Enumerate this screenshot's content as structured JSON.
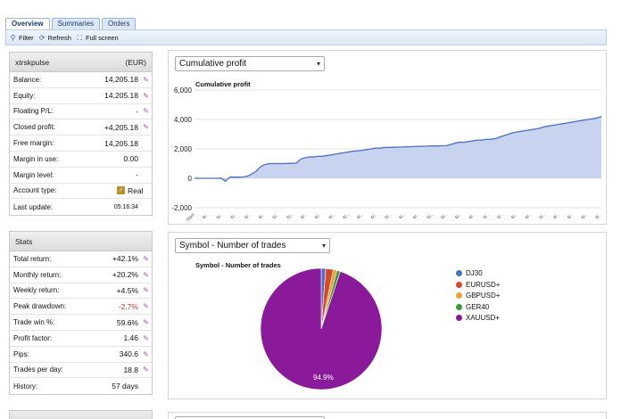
{
  "tabs": [
    "Overview",
    "Summaries",
    "Orders"
  ],
  "toolbar": {
    "filter": "Filter",
    "refresh": "Refresh",
    "fullscreen": "Full screen"
  },
  "account": {
    "name": "xtrskpulse",
    "currency": "(EUR)",
    "rows": [
      {
        "label": "Balance:",
        "value": "14,205.18",
        "editable": true
      },
      {
        "label": "Equity:",
        "value": "14,205.18",
        "editable": true
      },
      {
        "label": "Floating P/L:",
        "value": "-",
        "editable": true
      },
      {
        "label": "Closed profit:",
        "value": "+4,205.18",
        "editable": true
      },
      {
        "label": "Free margin:",
        "value": "14,205.18",
        "editable": false
      },
      {
        "label": "Margin in use:",
        "value": "0.00",
        "editable": false
      },
      {
        "label": "Margin level:",
        "value": "-",
        "editable": false
      },
      {
        "label": "Account type:",
        "value": "Real",
        "editable": false
      },
      {
        "label": "Last update:",
        "value": "05:16:34",
        "editable": false
      }
    ]
  },
  "stats": {
    "title": "Stats",
    "rows": [
      {
        "label": "Total return:",
        "value": "+42.1%",
        "editable": true,
        "color": ""
      },
      {
        "label": "Monthly return:",
        "value": "+20.2%",
        "editable": true,
        "color": ""
      },
      {
        "label": "Weekly return:",
        "value": "+4.5%",
        "editable": true,
        "color": ""
      },
      {
        "label": "Peak drawdown:",
        "value": "-2.7%",
        "editable": true,
        "color": "red"
      },
      {
        "label": "Trade win %:",
        "value": "59.6%",
        "editable": true,
        "color": ""
      },
      {
        "label": "Profit factor:",
        "value": "1.46",
        "editable": true,
        "color": ""
      },
      {
        "label": "Pips:",
        "value": "340.6",
        "editable": true,
        "color": ""
      },
      {
        "label": "Trades per day:",
        "value": "18.8",
        "editable": true,
        "color": ""
      },
      {
        "label": "History:",
        "value": "57 days",
        "editable": false,
        "color": ""
      }
    ]
  },
  "charts": {
    "cumulative_select": "Cumulative profit",
    "symbol_select": "Symbol - Number of trades"
  },
  "chart_data": [
    {
      "type": "area",
      "title": "Cumulative profit",
      "ylim": [
        -2000,
        6000
      ],
      "yticks": [
        "6,000",
        "4,000",
        "2,000",
        "0",
        "-2,000"
      ],
      "first_x_label": "Start",
      "x": [
        0,
        1,
        2,
        3,
        4,
        5,
        6,
        7,
        8,
        9,
        10,
        11,
        12,
        13,
        14,
        15,
        16,
        17,
        18,
        19,
        20,
        21,
        22,
        23,
        24,
        25,
        26,
        27,
        28,
        29,
        30,
        31,
        32,
        33,
        34,
        35,
        36,
        37,
        38,
        39,
        40,
        41,
        42,
        43,
        44,
        45,
        46,
        47,
        48,
        49,
        50,
        51,
        52,
        53,
        54,
        55,
        56,
        57,
        58,
        59,
        60,
        61,
        62,
        63,
        64,
        65,
        66,
        67,
        68,
        69,
        70,
        71,
        72,
        73,
        74,
        75,
        76,
        77,
        78,
        79,
        80,
        81,
        82,
        83,
        84,
        85,
        86,
        87,
        88,
        89,
        90,
        91,
        92
      ],
      "values": [
        0,
        0,
        0,
        0,
        0,
        0,
        10,
        -200,
        80,
        80,
        80,
        90,
        150,
        300,
        500,
        800,
        950,
        1000,
        1000,
        1000,
        1000,
        1010,
        1020,
        1030,
        1300,
        1400,
        1450,
        1450,
        1500,
        1500,
        1550,
        1600,
        1650,
        1700,
        1750,
        1800,
        1850,
        1870,
        1900,
        1950,
        2000,
        2050,
        2050,
        2100,
        2100,
        2110,
        2120,
        2130,
        2140,
        2150,
        2160,
        2170,
        2180,
        2190,
        2200,
        2200,
        2210,
        2220,
        2300,
        2400,
        2450,
        2450,
        2500,
        2550,
        2600,
        2600,
        2650,
        2650,
        2700,
        2800,
        2900,
        3000,
        3100,
        3150,
        3200,
        3250,
        3300,
        3350,
        3400,
        3500,
        3550,
        3600,
        3650,
        3700,
        3750,
        3800,
        3850,
        3900,
        3950,
        4000,
        4050,
        4100,
        4205
      ]
    },
    {
      "type": "pie",
      "title": "Symbol - Number of trades",
      "series": [
        {
          "name": "DJ30",
          "value": 1.2,
          "color": "#4472c4"
        },
        {
          "name": "EURUSD+",
          "value": 2.0,
          "color": "#d9482b"
        },
        {
          "name": "GBPUSD+",
          "value": 1.0,
          "color": "#f0a030"
        },
        {
          "name": "GER40",
          "value": 0.9,
          "color": "#3a9a3a"
        },
        {
          "name": "XAUUSD+",
          "value": 94.9,
          "color": "#8b1a9b"
        }
      ],
      "data_label": "94.9%"
    }
  ]
}
